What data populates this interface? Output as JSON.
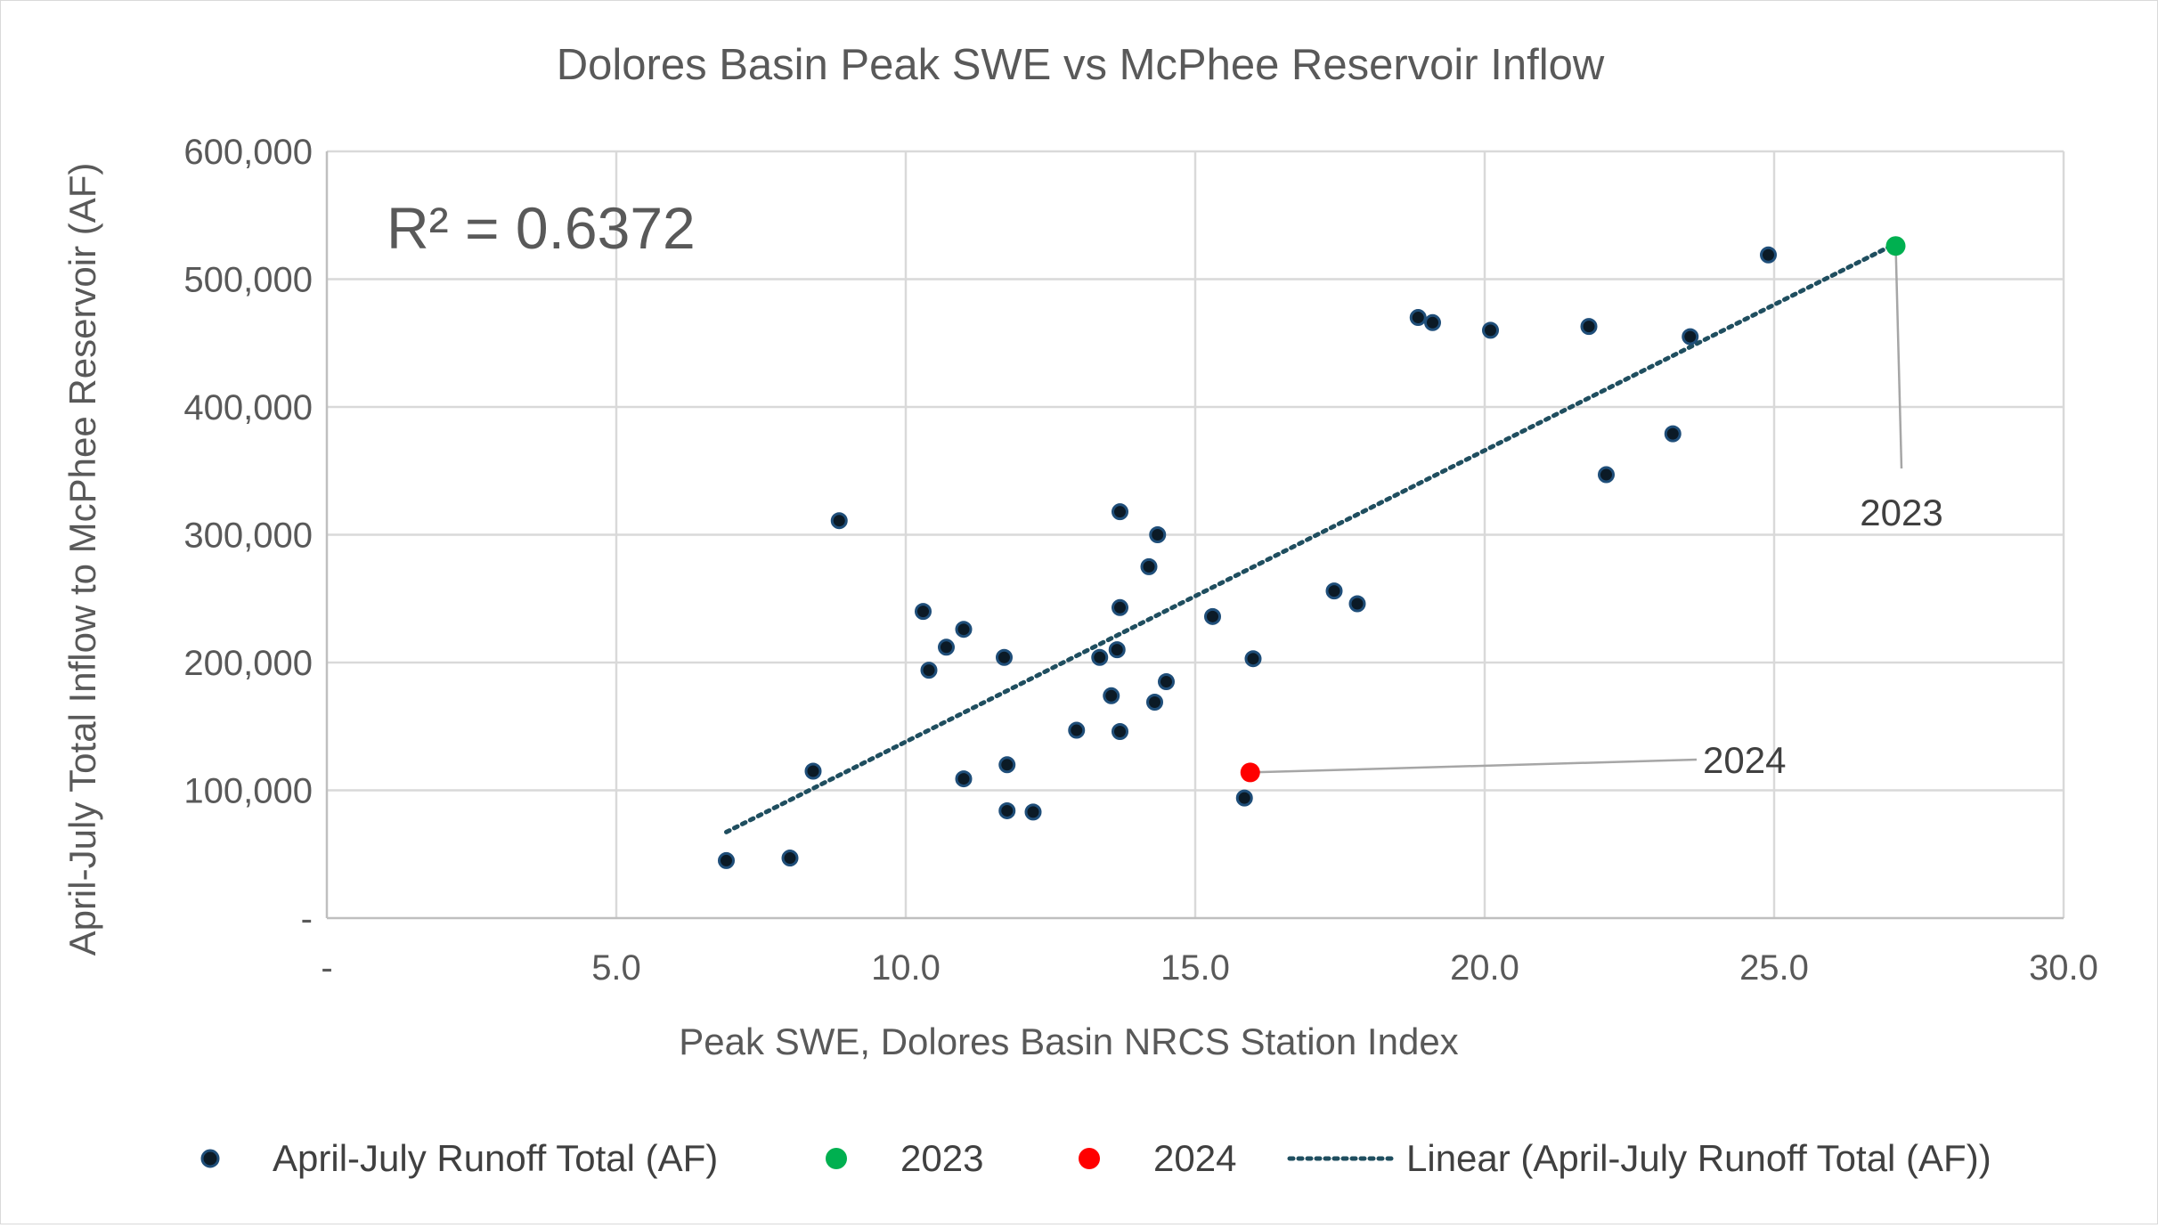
{
  "chart_data": {
    "type": "scatter",
    "title": "Dolores Basin Peak SWE vs McPhee Reservoir Inflow",
    "xlabel": "Peak SWE, Dolores Basin NRCS Station Index",
    "ylabel": "April-July Total Inflow to McPhee Reservoir (AF)",
    "xlim": [
      0,
      30
    ],
    "ylim": [
      0,
      600000
    ],
    "x_ticks": [
      0,
      5,
      10,
      15,
      20,
      25,
      30
    ],
    "x_tick_labels": [
      "-",
      "5.0",
      "10.0",
      "15.0",
      "20.0",
      "25.0",
      "30.0"
    ],
    "y_ticks": [
      0,
      100000,
      200000,
      300000,
      400000,
      500000,
      600000
    ],
    "y_tick_labels": [
      "-",
      "100,000",
      "200,000",
      "300,000",
      "400,000",
      "500,000",
      "600,000"
    ],
    "grid": true,
    "legend_position": "bottom",
    "r_squared_label": "R² = 0.6372",
    "series": [
      {
        "name": "April-July Runoff Total (AF)",
        "color": "#0b1a26",
        "marker_edge": "#1f4e79",
        "points": [
          [
            6.9,
            45000
          ],
          [
            8.0,
            47000
          ],
          [
            8.4,
            115000
          ],
          [
            8.85,
            311000
          ],
          [
            10.3,
            240000
          ],
          [
            10.4,
            194000
          ],
          [
            10.7,
            212000
          ],
          [
            11.0,
            109000
          ],
          [
            11.0,
            226000
          ],
          [
            11.7,
            204000
          ],
          [
            11.75,
            120000
          ],
          [
            11.75,
            84000
          ],
          [
            12.2,
            83000
          ],
          [
            12.95,
            147000
          ],
          [
            13.35,
            204000
          ],
          [
            13.55,
            174000
          ],
          [
            13.65,
            210000
          ],
          [
            13.7,
            146000
          ],
          [
            13.7,
            243000
          ],
          [
            13.7,
            318000
          ],
          [
            14.2,
            275000
          ],
          [
            14.3,
            169000
          ],
          [
            14.35,
            300000
          ],
          [
            14.5,
            185000
          ],
          [
            15.3,
            236000
          ],
          [
            15.85,
            94000
          ],
          [
            16.0,
            203000
          ],
          [
            17.4,
            256000
          ],
          [
            17.8,
            246000
          ],
          [
            18.85,
            470000
          ],
          [
            19.1,
            466000
          ],
          [
            20.1,
            460000
          ],
          [
            21.8,
            463000
          ],
          [
            22.1,
            347000
          ],
          [
            23.25,
            379000
          ],
          [
            23.55,
            455000
          ],
          [
            24.9,
            519000
          ]
        ]
      },
      {
        "name": "2023",
        "color": "#00b050",
        "points": [
          [
            27.1,
            526000
          ]
        ]
      },
      {
        "name": "2024",
        "color": "#ff0000",
        "points": [
          [
            15.95,
            114000
          ]
        ]
      }
    ],
    "trendline": {
      "name": "Linear (April-July Runoff Total (AF))",
      "color": "#1f4e5f",
      "style": "dotted",
      "x_range": [
        6.9,
        27.1
      ],
      "slope": 22800,
      "intercept": -90000
    },
    "annotations": [
      {
        "text": "2023",
        "point": [
          27.1,
          526000
        ],
        "label_at": [
          27.2,
          310000
        ]
      },
      {
        "text": "2024",
        "point": [
          15.95,
          114000
        ],
        "label_at": [
          24.0,
          124000
        ]
      }
    ]
  }
}
